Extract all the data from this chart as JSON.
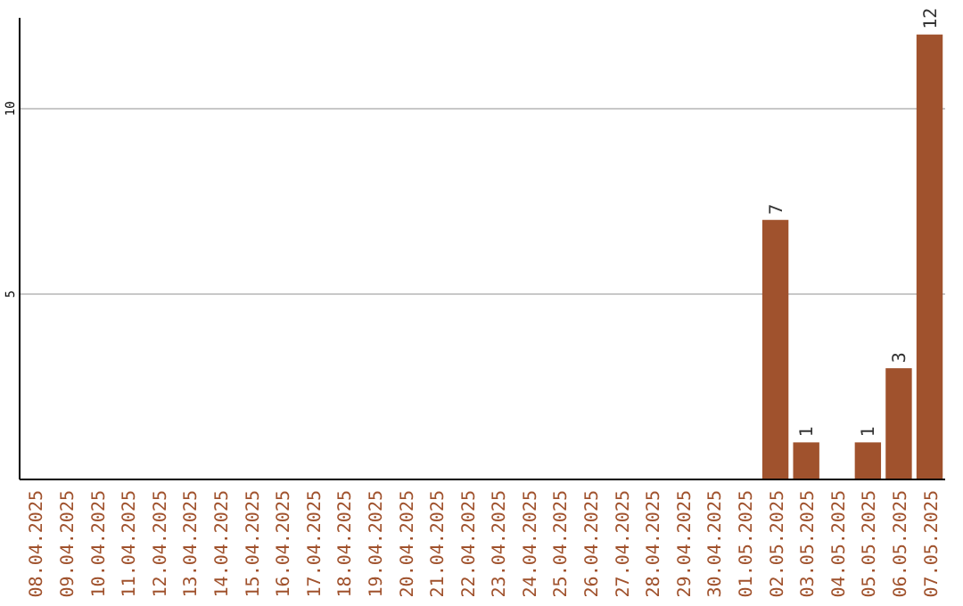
{
  "chart_data": {
    "type": "bar",
    "categories": [
      "08.04.2025",
      "09.04.2025",
      "10.04.2025",
      "11.04.2025",
      "12.04.2025",
      "13.04.2025",
      "14.04.2025",
      "15.04.2025",
      "16.04.2025",
      "17.04.2025",
      "18.04.2025",
      "19.04.2025",
      "20.04.2025",
      "21.04.2025",
      "22.04.2025",
      "23.04.2025",
      "24.04.2025",
      "25.04.2025",
      "26.04.2025",
      "27.04.2025",
      "28.04.2025",
      "29.04.2025",
      "30.04.2025",
      "01.05.2025",
      "02.05.2025",
      "03.05.2025",
      "04.05.2025",
      "05.05.2025",
      "06.05.2025",
      "07.05.2025"
    ],
    "values": [
      0,
      0,
      0,
      0,
      0,
      0,
      0,
      0,
      0,
      0,
      0,
      0,
      0,
      0,
      0,
      0,
      0,
      0,
      0,
      0,
      0,
      0,
      0,
      0,
      7,
      1,
      0,
      1,
      3,
      12
    ],
    "value_labels": [
      null,
      null,
      null,
      null,
      null,
      null,
      null,
      null,
      null,
      null,
      null,
      null,
      null,
      null,
      null,
      null,
      null,
      null,
      null,
      null,
      null,
      null,
      null,
      null,
      "7",
      "1",
      null,
      "1",
      "3",
      "12"
    ],
    "color": "#a0522d",
    "ylim": [
      0,
      12.45
    ],
    "yticks": [
      5,
      10
    ],
    "grid": "y"
  }
}
